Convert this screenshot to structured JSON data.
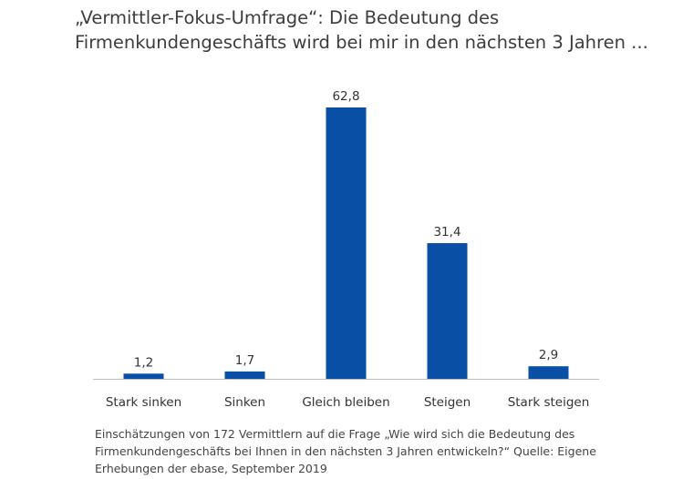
{
  "title_lines": [
    "„Vermittler-Fokus-Umfrage“: Die Bedeutung des",
    "Firmenkundengeschäfts wird bei mir in den nächsten 3 Jahren ..."
  ],
  "chart_data": {
    "type": "bar",
    "categories": [
      "Stark sinken",
      "Sinken",
      "Gleich bleiben",
      "Steigen",
      "Stark steigen"
    ],
    "values": [
      1.2,
      1.7,
      62.8,
      31.4,
      2.9
    ],
    "value_labels": [
      "1,2",
      "1,7",
      "62,8",
      "31,4",
      "2,9"
    ],
    "ylim": [
      0,
      70
    ],
    "grid": false,
    "bar_color": "#0a4fa6",
    "axis_color": "#bfbfbf"
  },
  "footnote_lines": [
    "Einschätzungen von 172 Vermittlern auf die Frage „Wie wird sich die Bedeutung des",
    "Firmenkundengeschäfts bei Ihnen in den nächsten 3 Jahren entwickeln?“ Quelle: Eigene",
    "Erhebungen der ebase, September 2019"
  ]
}
